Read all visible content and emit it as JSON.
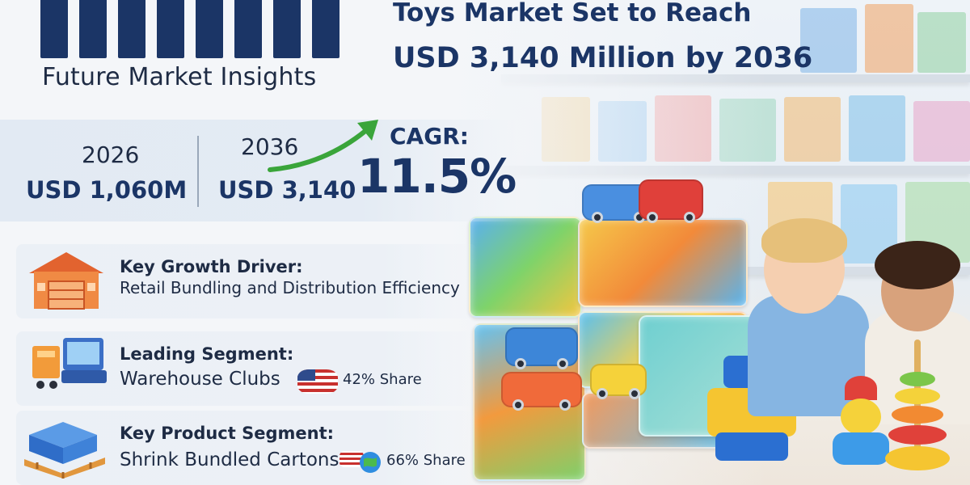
{
  "brand": {
    "name": "Future Market Insights"
  },
  "headline": {
    "line1": "Toys Market Set to Reach",
    "line2": "USD 3,140 Million by 2036"
  },
  "stats": {
    "start": {
      "year": "2026",
      "value": "USD 1,060M"
    },
    "end": {
      "year": "2036",
      "value": "USD 3,140"
    },
    "cagr": {
      "label": "CAGR:",
      "value": "11.5%"
    }
  },
  "insights": [
    {
      "title": "Key Growth Driver:",
      "subtitle": "Retail Bundling and Distribution Efficiency",
      "icon": "warehouse-icon"
    },
    {
      "title": "Leading Segment:",
      "subtitle": "Warehouse Clubs",
      "share": "42% Share",
      "icon": "store-checkout-icon",
      "flag": "us-flag-icon"
    },
    {
      "title": "Key Product Segment:",
      "subtitle": "Shrink Bundled Cartons",
      "share": "66% Share",
      "icon": "pallet-cartons-icon",
      "flag": "globe-flag-icon"
    }
  ],
  "colors": {
    "navy": "#1b3566",
    "text": "#1e2b44",
    "arrow_green": "#3aa53a",
    "band": "#e2eaf3"
  }
}
